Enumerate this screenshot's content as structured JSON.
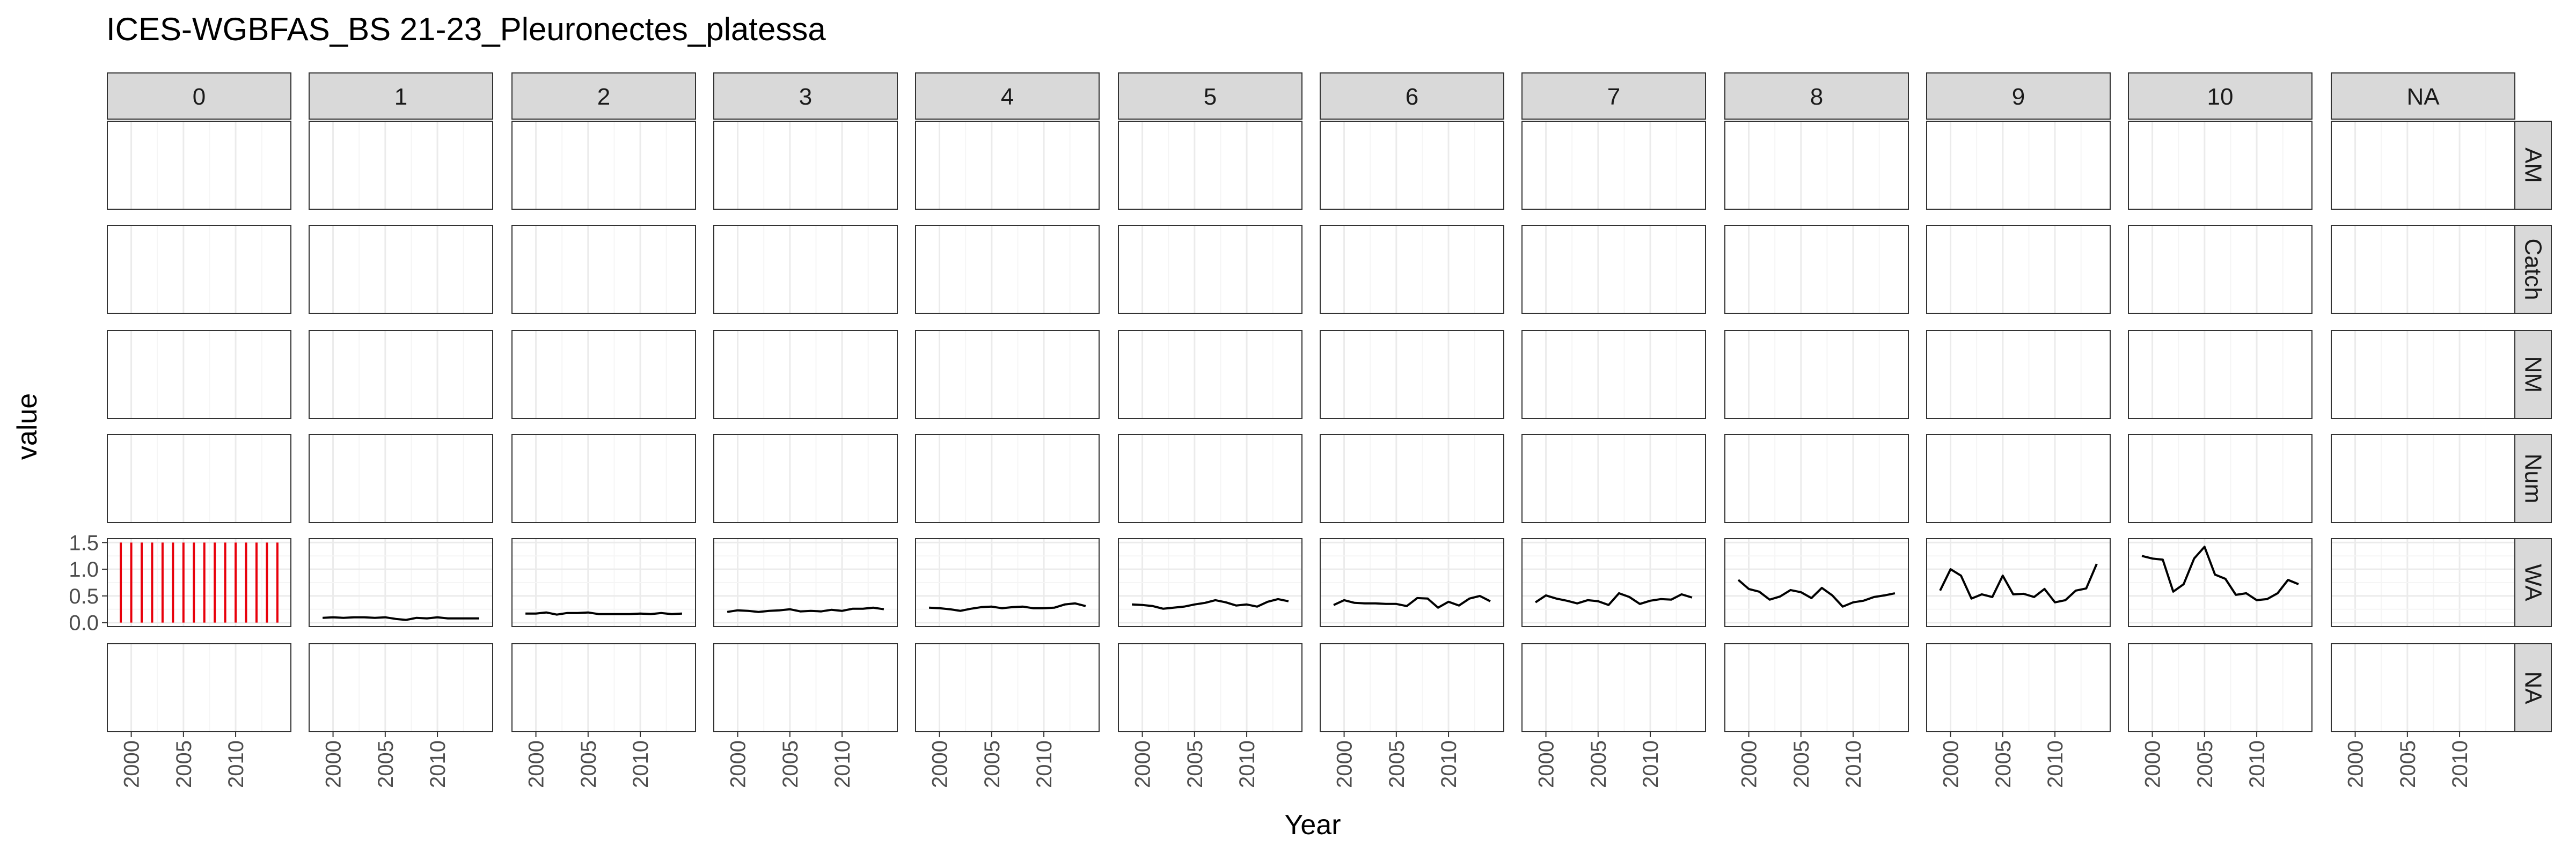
{
  "chart_data": {
    "type": "line",
    "title": "ICES-WGBFAS_BS 21-23_Pleuronectes_platessa",
    "xlabel": "Year",
    "ylabel": "value",
    "xlim": [
      1998.5,
      2014.5
    ],
    "ylim": [
      0,
      1.5
    ],
    "x_ticks": [
      2000,
      2005,
      2010
    ],
    "y_ticks": [
      {
        "value": 0.0,
        "label": "0.0"
      },
      {
        "value": 0.5,
        "label": "0.5"
      },
      {
        "value": 1.0,
        "label": "1.0"
      },
      {
        "value": 1.5,
        "label": "1.5"
      }
    ],
    "grid": true,
    "facet_columns": [
      "0",
      "1",
      "2",
      "3",
      "4",
      "5",
      "6",
      "7",
      "8",
      "9",
      "10",
      "NA"
    ],
    "facet_rows": [
      "AM",
      "Catch",
      "NM",
      "Num",
      "WA",
      "NA"
    ],
    "years": [
      1999,
      2000,
      2001,
      2002,
      2003,
      2004,
      2005,
      2006,
      2007,
      2008,
      2009,
      2010,
      2011,
      2012,
      2013,
      2014
    ],
    "series": [
      {
        "row": "WA",
        "col": "0",
        "color": "#e8000b",
        "style": "vertical-lines",
        "values": [
          1.5,
          1.5,
          1.5,
          1.5,
          1.5,
          1.5,
          1.5,
          1.5,
          1.5,
          1.5,
          1.5,
          1.5,
          1.5,
          1.5,
          1.5,
          1.5
        ]
      },
      {
        "row": "WA",
        "col": "1",
        "color": "#000000",
        "style": "line",
        "values": [
          0.09,
          0.1,
          0.09,
          0.1,
          0.1,
          0.09,
          0.1,
          0.07,
          0.05,
          0.09,
          0.08,
          0.1,
          0.08,
          0.08,
          0.08,
          0.08
        ]
      },
      {
        "row": "WA",
        "col": "2",
        "color": "#000000",
        "style": "line",
        "values": [
          0.17,
          0.17,
          0.19,
          0.15,
          0.18,
          0.18,
          0.19,
          0.16,
          0.16,
          0.16,
          0.16,
          0.17,
          0.16,
          0.18,
          0.16,
          0.17
        ]
      },
      {
        "row": "WA",
        "col": "3",
        "color": "#000000",
        "style": "line",
        "values": [
          0.2,
          0.23,
          0.22,
          0.2,
          0.22,
          0.23,
          0.25,
          0.21,
          0.22,
          0.21,
          0.24,
          0.22,
          0.26,
          0.26,
          0.28,
          0.25
        ]
      },
      {
        "row": "WA",
        "col": "4",
        "color": "#000000",
        "style": "line",
        "values": [
          0.28,
          0.27,
          0.25,
          0.22,
          0.26,
          0.29,
          0.3,
          0.27,
          0.29,
          0.3,
          0.27,
          0.27,
          0.28,
          0.34,
          0.36,
          0.31
        ]
      },
      {
        "row": "WA",
        "col": "5",
        "color": "#000000",
        "style": "line",
        "values": [
          0.34,
          0.33,
          0.31,
          0.26,
          0.28,
          0.3,
          0.34,
          0.37,
          0.42,
          0.38,
          0.32,
          0.34,
          0.3,
          0.39,
          0.44,
          0.4
        ]
      },
      {
        "row": "WA",
        "col": "6",
        "color": "#000000",
        "style": "line",
        "values": [
          0.33,
          0.42,
          0.37,
          0.36,
          0.36,
          0.35,
          0.35,
          0.31,
          0.46,
          0.45,
          0.28,
          0.39,
          0.32,
          0.45,
          0.5,
          0.4
        ]
      },
      {
        "row": "WA",
        "col": "7",
        "color": "#000000",
        "style": "line",
        "values": [
          0.38,
          0.51,
          0.45,
          0.41,
          0.36,
          0.42,
          0.4,
          0.33,
          0.55,
          0.48,
          0.35,
          0.41,
          0.44,
          0.43,
          0.53,
          0.47
        ]
      },
      {
        "row": "WA",
        "col": "8",
        "color": "#000000",
        "style": "line",
        "values": [
          0.8,
          0.63,
          0.58,
          0.43,
          0.49,
          0.61,
          0.57,
          0.46,
          0.65,
          0.51,
          0.3,
          0.38,
          0.41,
          0.48,
          0.51,
          0.55
        ]
      },
      {
        "row": "WA",
        "col": "9",
        "color": "#000000",
        "style": "line",
        "values": [
          0.6,
          1.0,
          0.88,
          0.45,
          0.53,
          0.48,
          0.88,
          0.53,
          0.54,
          0.48,
          0.63,
          0.38,
          0.42,
          0.6,
          0.64,
          1.1
        ]
      },
      {
        "row": "WA",
        "col": "10",
        "color": "#000000",
        "style": "line",
        "values": [
          1.25,
          1.2,
          1.18,
          0.58,
          0.72,
          1.2,
          1.42,
          0.9,
          0.82,
          0.52,
          0.55,
          0.42,
          0.44,
          0.55,
          0.8,
          0.72
        ]
      }
    ]
  }
}
